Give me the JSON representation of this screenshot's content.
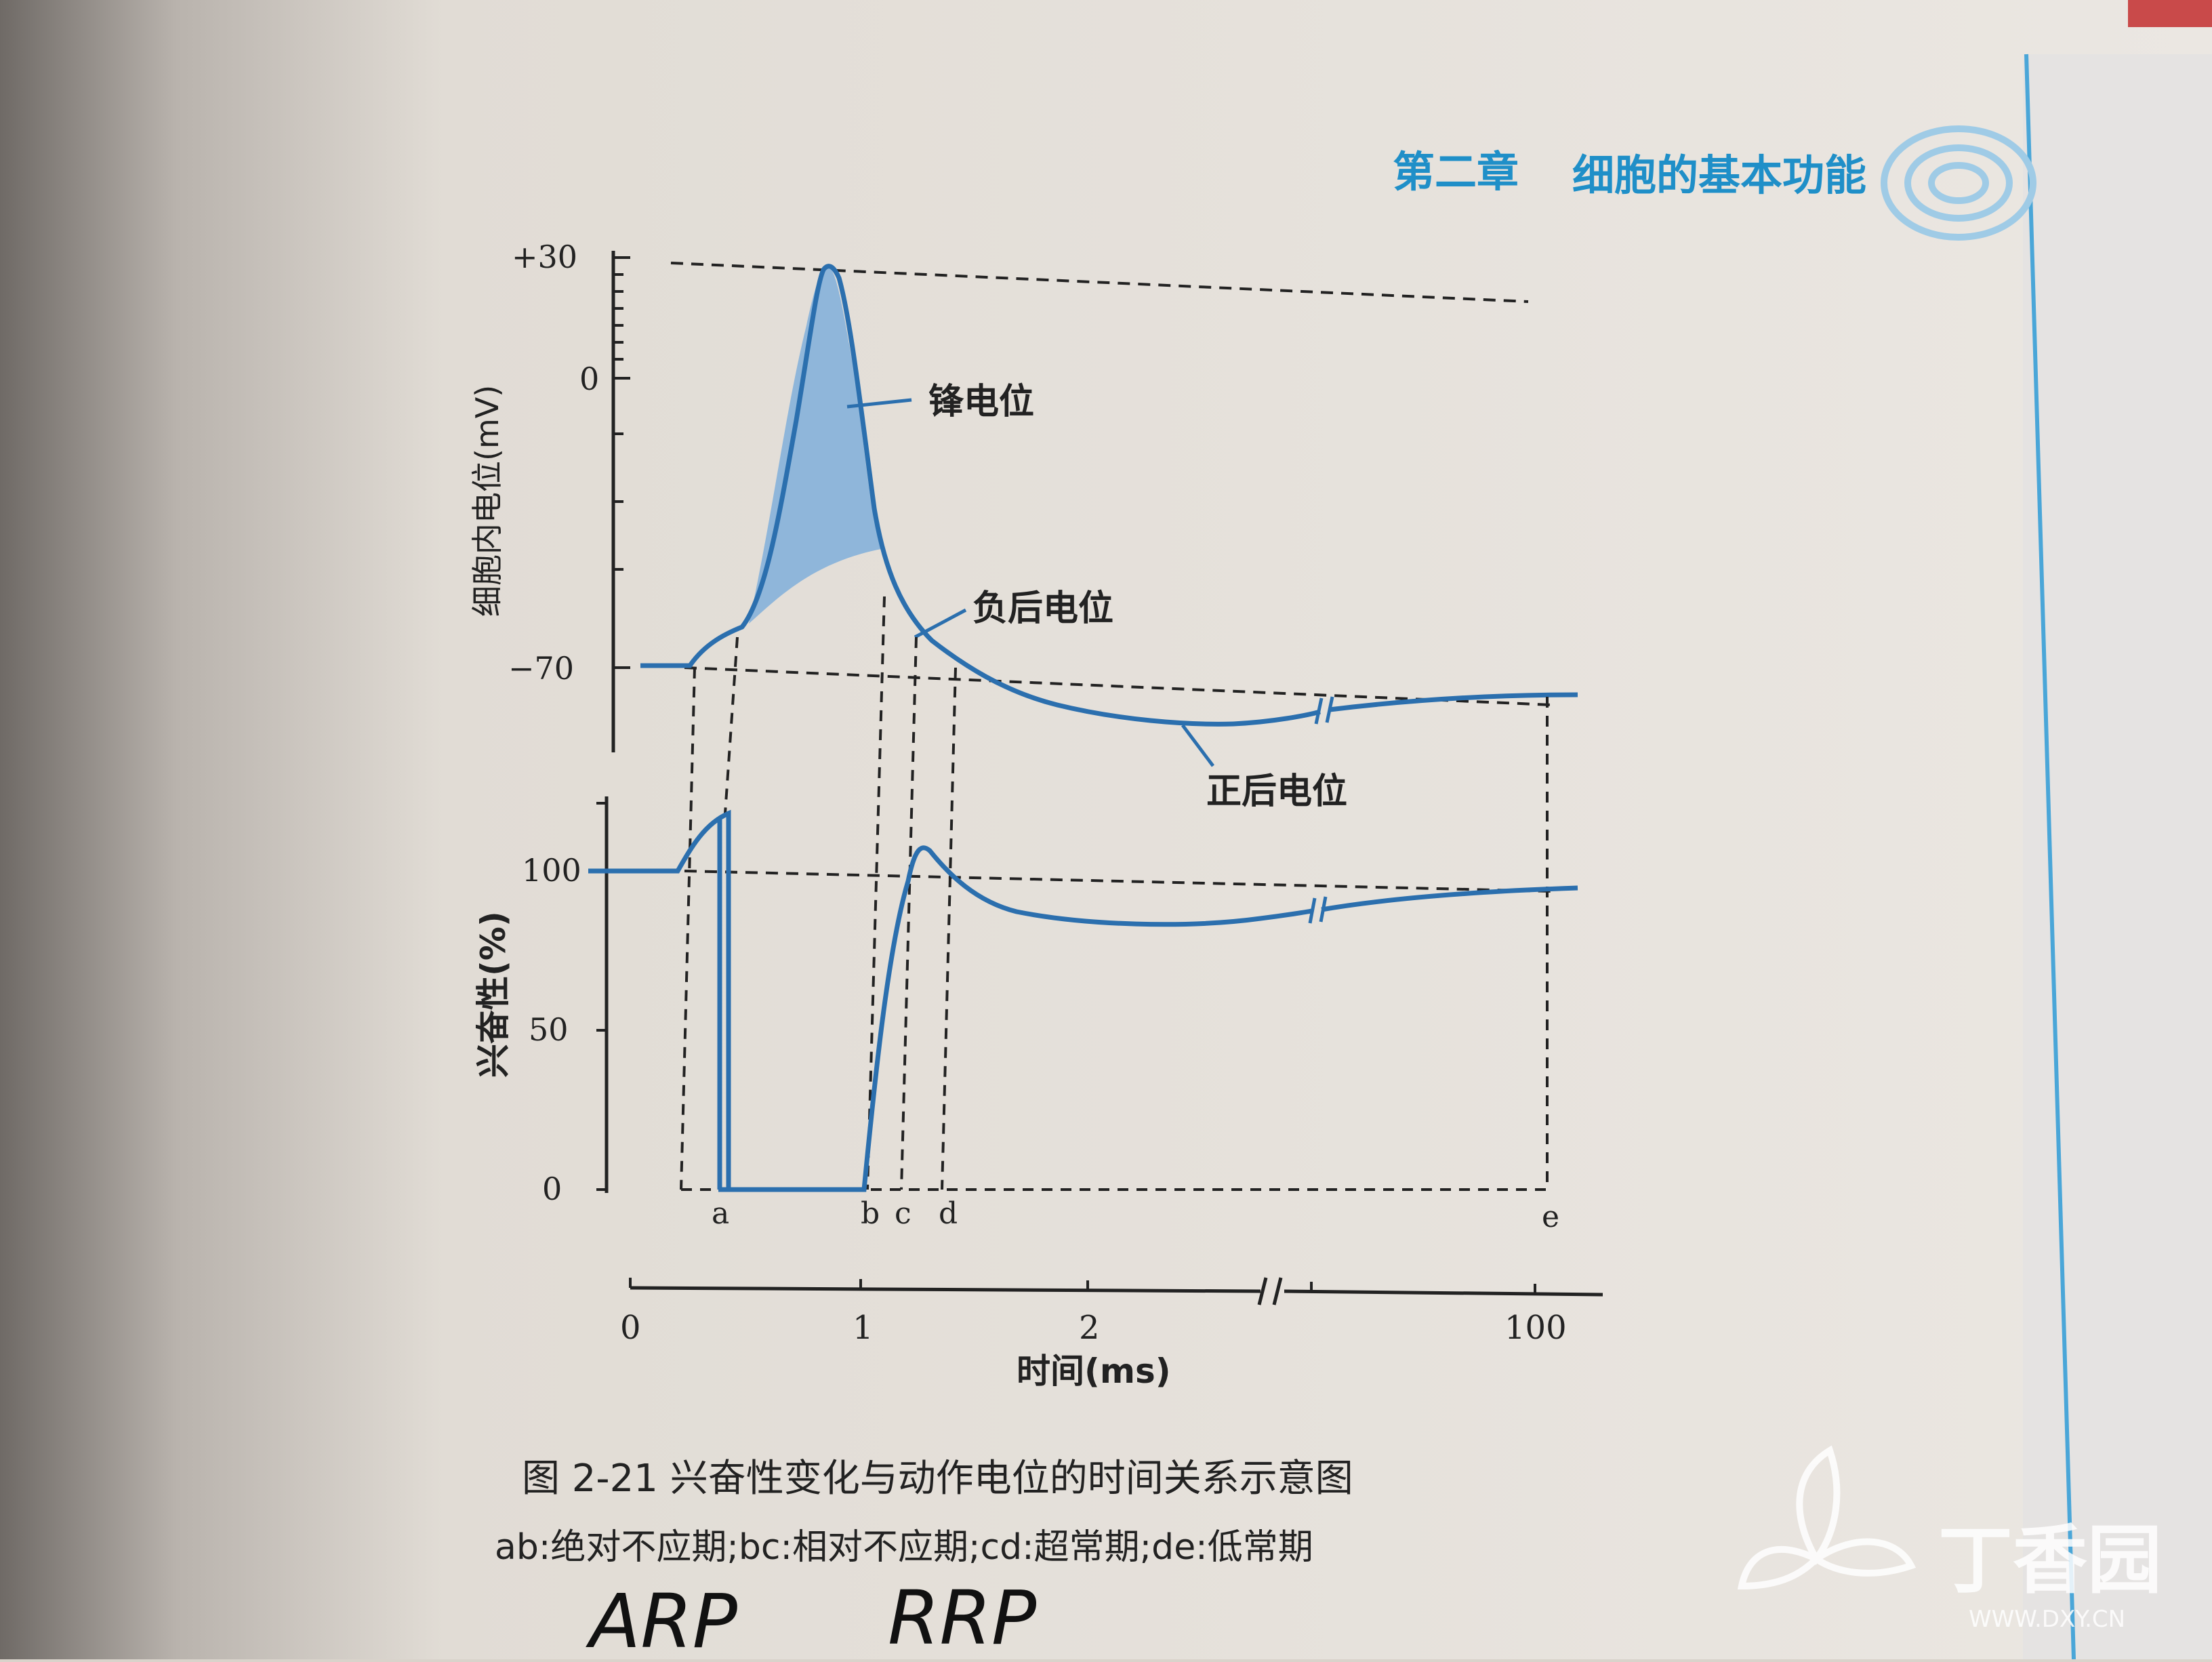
{
  "header": {
    "chapter": "第二章",
    "chapter_title": "细胞的基本功能"
  },
  "top_chart": {
    "ylabel": "细胞内电位(mV)",
    "yticks": [
      "+30",
      "0",
      "−70"
    ],
    "labels": {
      "spike": "锋电位",
      "negative_after": "负后电位",
      "positive_after": "正后电位"
    }
  },
  "bottom_chart": {
    "ylabel": "兴奋性(%)",
    "yticks": [
      "100",
      "50",
      "0"
    ],
    "markers": [
      "a",
      "b",
      "c",
      "d",
      "e"
    ]
  },
  "time_axis": {
    "ticks": [
      "0",
      "1",
      "2",
      "100"
    ],
    "label": "时间(ms)"
  },
  "caption": {
    "title": "图 2-21   兴奋性变化与动作电位的时间关系示意图",
    "legend": "ab:绝对不应期;bc:相对不应期;cd:超常期;de:低常期"
  },
  "handwriting": {
    "arp": "ARP",
    "rrp": "RRP"
  },
  "watermark": {
    "brand": "丁香园",
    "url": "WWW.DXY.CN"
  },
  "colors": {
    "curve": "#2b6fae",
    "fill": "#8fb6da",
    "accent": "#1f8fc8",
    "page": "#e9e5df"
  }
}
